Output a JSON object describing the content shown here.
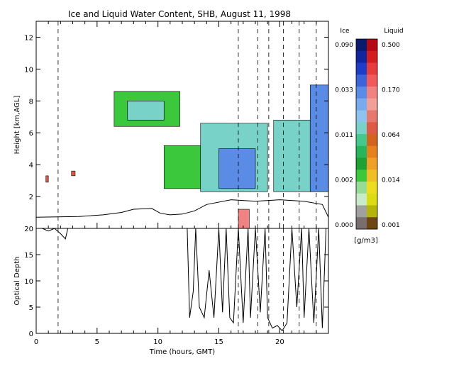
{
  "chart_data": [
    {
      "type": "heatmap",
      "title": "Ice and Liquid Water Content, SHB, August 11, 1998",
      "xlabel": "",
      "ylabel": "Height [km,AGL]",
      "xlim": [
        0,
        24
      ],
      "ylim": [
        0,
        13
      ],
      "y_ticks": [
        2,
        4,
        6,
        8,
        10,
        12
      ],
      "dashed_lines_hours": [
        1.8,
        16.6,
        18.2,
        19.1,
        20.3,
        21.6,
        23.0
      ],
      "boundary_layer_km": [
        [
          0,
          0.7
        ],
        [
          3.5,
          0.75
        ],
        [
          5.5,
          0.85
        ],
        [
          7.0,
          1.0
        ],
        [
          8.0,
          1.2
        ],
        [
          9.5,
          1.25
        ],
        [
          10.2,
          0.95
        ],
        [
          11.0,
          0.85
        ],
        [
          12.0,
          0.9
        ],
        [
          13.0,
          1.1
        ],
        [
          14.0,
          1.5
        ],
        [
          16.0,
          1.8
        ],
        [
          18.0,
          1.7
        ],
        [
          20.0,
          1.8
        ],
        [
          22.0,
          1.7
        ],
        [
          23.5,
          1.5
        ],
        [
          24,
          0.7
        ]
      ],
      "cloud_regions": [
        {
          "t0": 6.4,
          "t1": 11.8,
          "z0": 6.4,
          "z1": 8.6,
          "phase": "ice",
          "value": 0.002
        },
        {
          "t0": 7.5,
          "t1": 10.5,
          "z0": 6.8,
          "z1": 8.0,
          "phase": "ice",
          "value": 0.011
        },
        {
          "t0": 10.5,
          "t1": 13.5,
          "z0": 2.5,
          "z1": 5.2,
          "phase": "ice",
          "value": 0.002
        },
        {
          "t0": 13.5,
          "t1": 19.0,
          "z0": 2.3,
          "z1": 6.6,
          "phase": "ice",
          "value": 0.011
        },
        {
          "t0": 15.0,
          "t1": 18.0,
          "z0": 2.5,
          "z1": 5.0,
          "phase": "ice",
          "value": 0.033
        },
        {
          "t0": 19.5,
          "t1": 22.5,
          "z0": 2.3,
          "z1": 6.8,
          "phase": "ice",
          "value": 0.011
        },
        {
          "t0": 22.5,
          "t1": 24.0,
          "z0": 2.3,
          "z1": 9.0,
          "phase": "ice",
          "value": 0.033
        },
        {
          "t0": 16.6,
          "t1": 17.5,
          "z0": 0.0,
          "z1": 1.2,
          "phase": "liquid",
          "value": 0.17
        },
        {
          "t0": 0.8,
          "t1": 1.0,
          "z0": 2.9,
          "z1": 3.3,
          "phase": "liquid",
          "value": 0.064
        },
        {
          "t0": 2.9,
          "t1": 3.2,
          "z0": 3.3,
          "z1": 3.6,
          "phase": "liquid",
          "value": 0.064
        }
      ]
    },
    {
      "type": "line",
      "title": "",
      "xlabel": "Time (hours, GMT)",
      "ylabel": "Optical Depth",
      "xlim": [
        0,
        24
      ],
      "ylim": [
        0,
        20
      ],
      "x_ticks": [
        0,
        5,
        10,
        15,
        20
      ],
      "y_ticks": [
        0,
        5,
        10,
        15,
        20
      ],
      "series": [
        {
          "x": [
            0,
            0.5,
            1.0,
            1.5,
            2.0,
            2.4,
            2.6,
            3.0,
            12.4,
            12.6,
            12.9,
            13.1,
            13.4,
            13.8,
            14.2,
            14.6,
            15.0,
            15.3,
            15.6,
            15.9,
            16.2,
            16.6,
            17.0,
            17.4,
            17.6,
            18.0,
            18.4,
            18.8,
            19.0,
            19.4,
            19.8,
            20.2,
            20.6,
            21.0,
            21.4,
            21.8,
            22.0,
            22.4,
            22.8,
            23.2,
            23.5,
            23.8,
            24.0
          ],
          "y": [
            20,
            20,
            19.5,
            20,
            19.0,
            18.0,
            20,
            20,
            20,
            3,
            8,
            20,
            5,
            3,
            12,
            3,
            20,
            4,
            20,
            3,
            2,
            20,
            2,
            20,
            3,
            20,
            4,
            20,
            3,
            1,
            1.5,
            0.5,
            2,
            20,
            5,
            20,
            3,
            20,
            2,
            20,
            1,
            20,
            20
          ]
        }
      ]
    }
  ],
  "colorbar": {
    "ice_label": "Ice",
    "liquid_label": "Liquid",
    "units": "[g/m3]",
    "ice_ticks": [
      "0.090",
      "0.033",
      "0.011",
      "0.002",
      "0.000"
    ],
    "liquid_ticks": [
      "0.500",
      "0.170",
      "0.064",
      "0.014",
      "0.001"
    ],
    "ice_colors": [
      "#0a1b6e",
      "#12259a",
      "#1e3cc8",
      "#3c64d8",
      "#5a8ce6",
      "#78aaee",
      "#8cc4ee",
      "#78d2c8",
      "#46c88c",
      "#28b45a",
      "#1ea032",
      "#3cc83c",
      "#96dc96",
      "#c8ecc8",
      "#a0a0a0",
      "#786e6e"
    ],
    "liquid_colors": [
      "#b40a14",
      "#d21e1e",
      "#e63c3c",
      "#f05a5a",
      "#f08282",
      "#f0a096",
      "#e6786e",
      "#dc5a46",
      "#d2641e",
      "#e6821e",
      "#f0a028",
      "#f0be28",
      "#f0dc1e",
      "#dcdc14",
      "#b4b40a",
      "#6e4614"
    ]
  }
}
